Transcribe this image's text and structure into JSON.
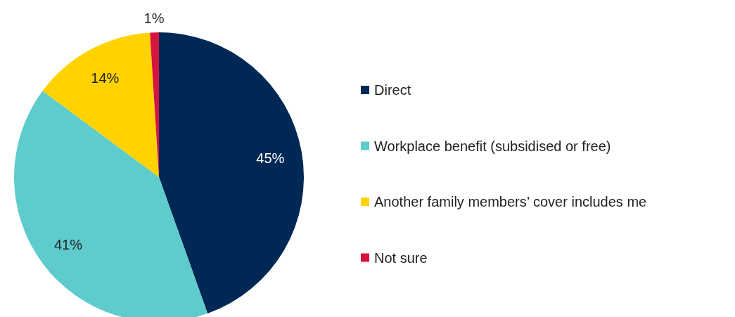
{
  "chart_data": {
    "type": "pie",
    "categories": [
      "Direct",
      "Workplace benefit (subsidised or free)",
      "Another family members’ cover includes me",
      "Not sure"
    ],
    "values": [
      45,
      41,
      14,
      1
    ],
    "colors": [
      "#002855",
      "#5ecbcd",
      "#ffd200",
      "#d5143f"
    ],
    "value_labels": [
      "45%",
      "41%",
      "14%",
      "1%"
    ],
    "legend": "right"
  }
}
